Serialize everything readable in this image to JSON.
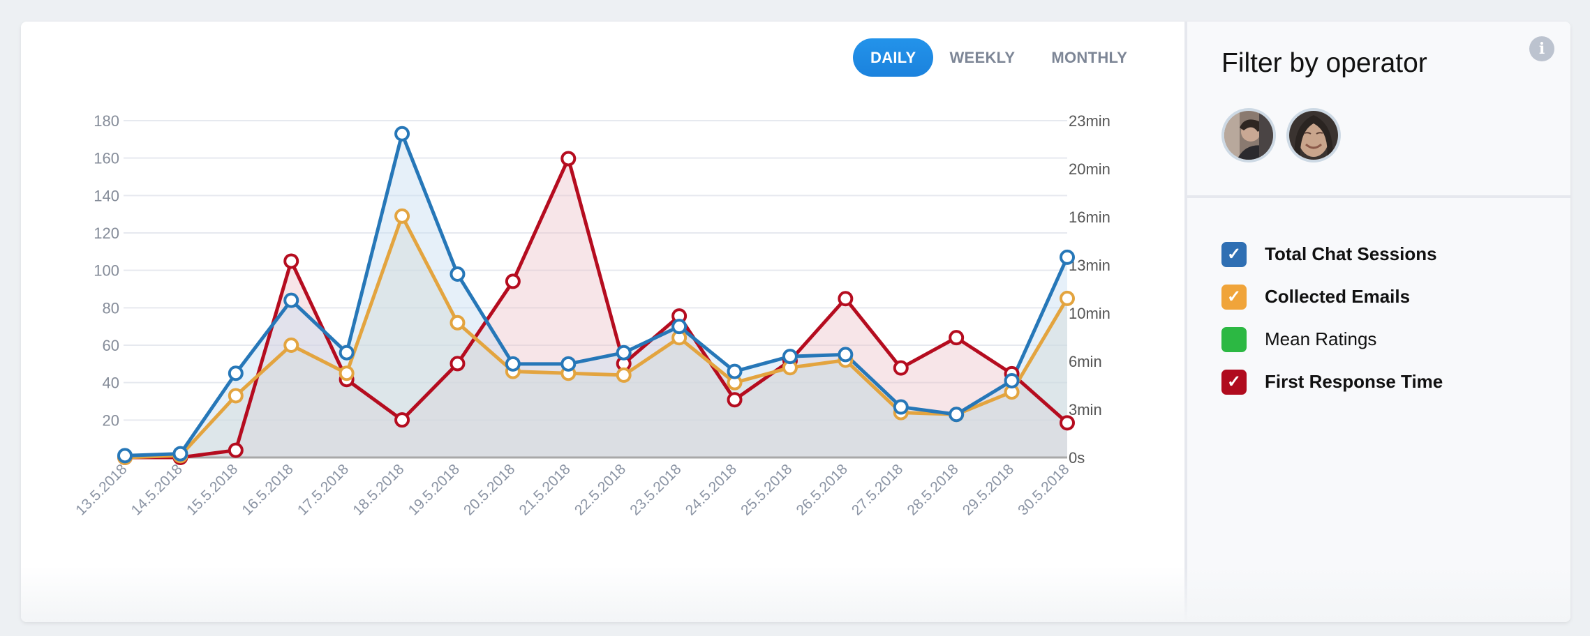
{
  "tabs": [
    {
      "label": "DAILY",
      "active": true
    },
    {
      "label": "WEEKLY",
      "active": false
    },
    {
      "label": "MONTHLY",
      "active": false
    }
  ],
  "panel": {
    "title": "Filter by operator",
    "info_icon": "info-icon",
    "operators": [
      {
        "name": "operator-1"
      },
      {
        "name": "operator-2"
      }
    ],
    "legend": [
      {
        "label": "Total Chat Sessions",
        "color": "#2f6fb3",
        "checked": true
      },
      {
        "label": "Collected Emails",
        "color": "#f0a43a",
        "checked": true
      },
      {
        "label": "Mean Ratings",
        "color": "#2cb843",
        "checked": false
      },
      {
        "label": "First Response Time",
        "color": "#b00b1e",
        "checked": true
      }
    ]
  },
  "chart_data": {
    "type": "line",
    "title": "",
    "xlabel": "",
    "ylabel": "",
    "grid": true,
    "categories": [
      "13.5.2018",
      "14.5.2018",
      "15.5.2018",
      "16.5.2018",
      "17.5.2018",
      "18.5.2018",
      "19.5.2018",
      "20.5.2018",
      "21.5.2018",
      "22.5.2018",
      "23.5.2018",
      "24.5.2018",
      "25.5.2018",
      "26.5.2018",
      "27.5.2018",
      "28.5.2018",
      "29.5.2018",
      "30.5.2018"
    ],
    "left_axis": {
      "ylim": [
        0,
        180
      ],
      "ticks": [
        20,
        40,
        60,
        80,
        100,
        120,
        140,
        160,
        180
      ]
    },
    "right_axis": {
      "unit": "minutes",
      "ylim": [
        0,
        23.33
      ],
      "tick_labels": [
        "0s",
        "3min",
        "6min",
        "10min",
        "13min",
        "16min",
        "20min",
        "23min"
      ]
    },
    "series": [
      {
        "name": "Total Chat Sessions",
        "axis": "left",
        "color": "#2677b8",
        "fill": "rgba(200,222,242,0.45)",
        "values": [
          1,
          2,
          45,
          84,
          56,
          173,
          98,
          50,
          50,
          56,
          70,
          46,
          54,
          55,
          27,
          23,
          41,
          107
        ]
      },
      {
        "name": "Collected Emails",
        "axis": "left",
        "color": "#e3a43f",
        "fill": "rgba(220,214,196,0.45)",
        "values": [
          0,
          1,
          33,
          60,
          45,
          129,
          72,
          46,
          45,
          44,
          64,
          40,
          48,
          52,
          24,
          23,
          35,
          85
        ]
      },
      {
        "name": "First Response Time",
        "axis": "right",
        "color": "#b50c1f",
        "fill": "rgba(236,190,198,0.4)",
        "values": [
          0,
          0,
          0.5,
          13.6,
          5.4,
          2.6,
          6.5,
          12.2,
          20.7,
          6.5,
          9.8,
          4.0,
          6.7,
          11.0,
          6.2,
          8.3,
          5.8,
          2.4
        ]
      }
    ]
  }
}
